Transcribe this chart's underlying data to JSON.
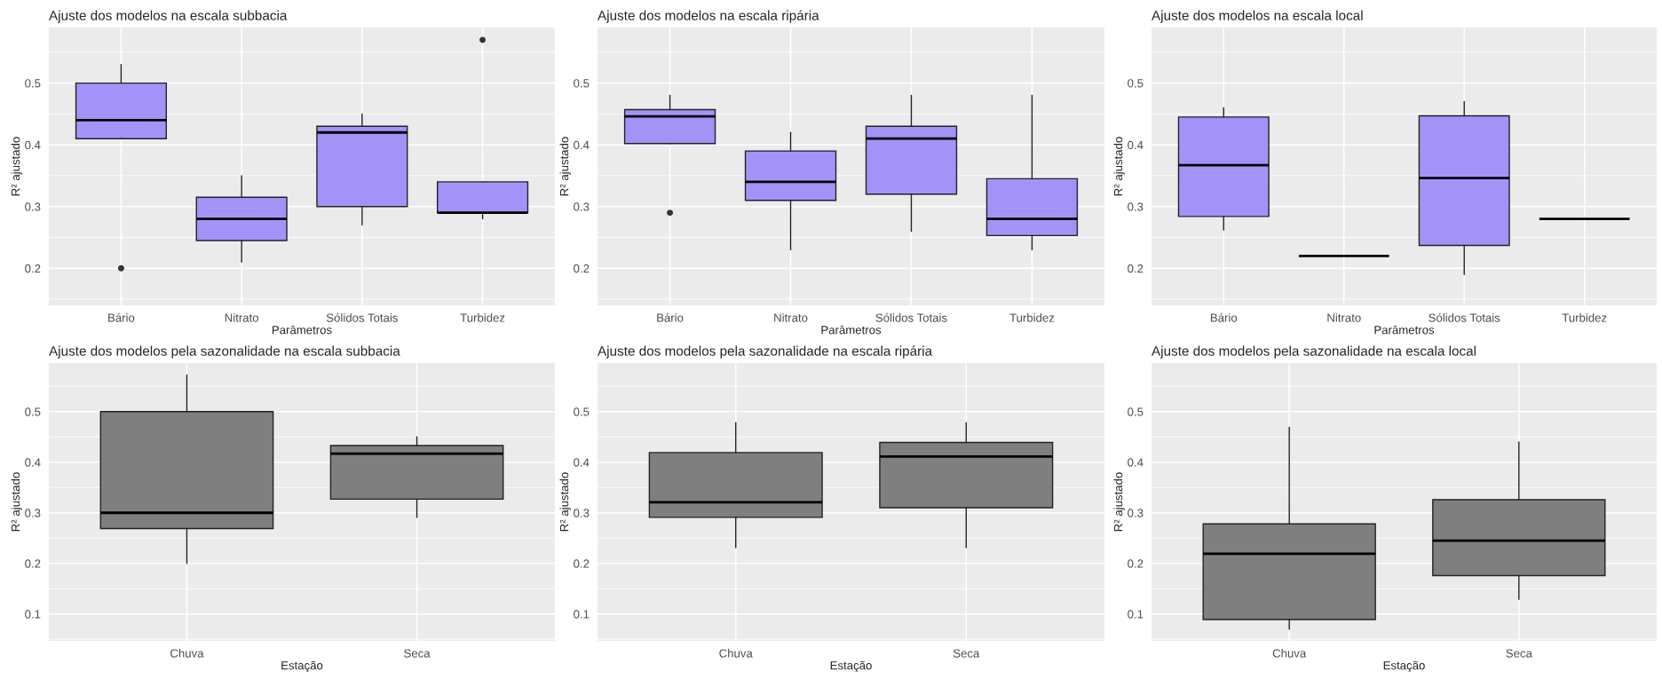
{
  "chart_data": [
    {
      "type": "box",
      "title": "Ajuste dos modelos na escala subbacia",
      "xlabel": "Parâmetros",
      "ylabel": "R² ajustado",
      "categories": [
        "Bário",
        "Nitrato",
        "Sólidos Totais",
        "Turbidez"
      ],
      "color": "#a393f8",
      "ylim": [
        0.14,
        0.59
      ],
      "yticks": [
        0.2,
        0.3,
        0.4,
        0.5
      ],
      "grid": true,
      "boxes": [
        {
          "low": 0.41,
          "q1": 0.41,
          "median": 0.44,
          "q3": 0.5,
          "high": 0.53,
          "outliers": [
            0.2
          ]
        },
        {
          "low": 0.21,
          "q1": 0.245,
          "median": 0.28,
          "q3": 0.315,
          "high": 0.35
        },
        {
          "low": 0.27,
          "q1": 0.3,
          "median": 0.42,
          "q3": 0.43,
          "high": 0.45
        },
        {
          "low": 0.28,
          "q1": 0.29,
          "median": 0.29,
          "q3": 0.34,
          "high": 0.34,
          "outliers": [
            0.57
          ]
        }
      ]
    },
    {
      "type": "box",
      "title": "Ajuste dos modelos na escala ripária",
      "xlabel": "Parâmetros",
      "ylabel": "R² ajustado",
      "categories": [
        "Bário",
        "Nitrato",
        "Sólidos Totais",
        "Turbidez"
      ],
      "color": "#a393f8",
      "ylim": [
        0.14,
        0.59
      ],
      "yticks": [
        0.2,
        0.3,
        0.4,
        0.5
      ],
      "grid": true,
      "boxes": [
        {
          "low": 0.402,
          "q1": 0.402,
          "median": 0.446,
          "q3": 0.457,
          "high": 0.48,
          "outliers": [
            0.29
          ]
        },
        {
          "low": 0.23,
          "q1": 0.31,
          "median": 0.34,
          "q3": 0.39,
          "high": 0.42
        },
        {
          "low": 0.26,
          "q1": 0.32,
          "median": 0.41,
          "q3": 0.43,
          "high": 0.48
        },
        {
          "low": 0.23,
          "q1": 0.253,
          "median": 0.28,
          "q3": 0.345,
          "high": 0.48
        }
      ]
    },
    {
      "type": "box",
      "title": "Ajuste dos modelos na escala local",
      "xlabel": "Parâmetros",
      "ylabel": "R² ajustado",
      "categories": [
        "Bário",
        "Nitrato",
        "Sólidos Totais",
        "Turbidez"
      ],
      "color": "#a393f8",
      "ylim": [
        0.14,
        0.59
      ],
      "yticks": [
        0.2,
        0.3,
        0.4,
        0.5
      ],
      "grid": true,
      "boxes": [
        {
          "low": 0.262,
          "q1": 0.284,
          "median": 0.367,
          "q3": 0.445,
          "high": 0.46
        },
        {
          "low": 0.22,
          "q1": 0.22,
          "median": 0.22,
          "q3": 0.22,
          "high": 0.22
        },
        {
          "low": 0.19,
          "q1": 0.237,
          "median": 0.346,
          "q3": 0.447,
          "high": 0.47
        },
        {
          "low": 0.28,
          "q1": 0.28,
          "median": 0.28,
          "q3": 0.28,
          "high": 0.28
        }
      ]
    },
    {
      "type": "box",
      "title": "Ajuste dos modelos pela sazonalidade na escala subbacia",
      "xlabel": "Estação",
      "ylabel": "R² ajustado",
      "categories": [
        "Chuva",
        "Seca"
      ],
      "color": "#7f7f7f",
      "ylim": [
        0.047,
        0.596
      ],
      "yticks": [
        0.1,
        0.2,
        0.3,
        0.4,
        0.5
      ],
      "grid": true,
      "boxes": [
        {
          "low": 0.2,
          "q1": 0.269,
          "median": 0.3,
          "q3": 0.5,
          "high": 0.572
        },
        {
          "low": 0.291,
          "q1": 0.327,
          "median": 0.417,
          "q3": 0.433,
          "high": 0.45
        }
      ]
    },
    {
      "type": "box",
      "title": "Ajuste dos modelos pela sazonalidade na escala ripária",
      "xlabel": "Estação",
      "ylabel": "R² ajustado",
      "categories": [
        "Chuva",
        "Seca"
      ],
      "color": "#7f7f7f",
      "ylim": [
        0.047,
        0.596
      ],
      "yticks": [
        0.1,
        0.2,
        0.3,
        0.4,
        0.5
      ],
      "grid": true,
      "boxes": [
        {
          "low": 0.231,
          "q1": 0.291,
          "median": 0.321,
          "q3": 0.419,
          "high": 0.478
        },
        {
          "low": 0.231,
          "q1": 0.31,
          "median": 0.411,
          "q3": 0.439,
          "high": 0.478
        }
      ]
    },
    {
      "type": "box",
      "title": "Ajuste dos modelos pela sazonalidade na escala local",
      "xlabel": "Estação",
      "ylabel": "R² ajustado",
      "categories": [
        "Chuva",
        "Seca"
      ],
      "color": "#7f7f7f",
      "ylim": [
        0.047,
        0.596
      ],
      "yticks": [
        0.1,
        0.2,
        0.3,
        0.4,
        0.5
      ],
      "grid": true,
      "boxes": [
        {
          "low": 0.07,
          "q1": 0.089,
          "median": 0.219,
          "q3": 0.278,
          "high": 0.469
        },
        {
          "low": 0.129,
          "q1": 0.176,
          "median": 0.245,
          "q3": 0.326,
          "high": 0.44
        }
      ]
    }
  ]
}
